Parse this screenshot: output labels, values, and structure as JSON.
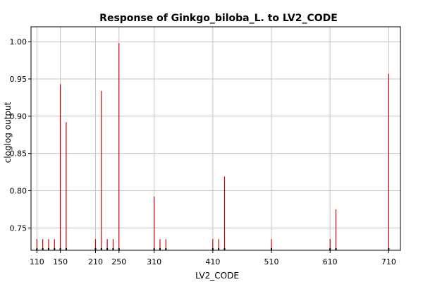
{
  "chart_data": {
    "type": "bar",
    "title": "Response of Ginkgo_biloba_L. to LV2_CODE",
    "xlabel": "LV2_CODE",
    "ylabel": "cloglog output",
    "xlim": [
      100,
      730
    ],
    "ylim": [
      0.72,
      1.02
    ],
    "x_ticks": [
      110,
      150,
      210,
      250,
      310,
      410,
      510,
      610,
      710
    ],
    "y_ticks": [
      0.75,
      0.8,
      0.85,
      0.9,
      0.95,
      1.0
    ],
    "y_tick_labels": [
      "0.75",
      "0.80",
      "0.85",
      "0.90",
      "0.95",
      "1.00"
    ],
    "grid": true,
    "color": "#cc0000",
    "points": [
      {
        "x": 110,
        "y": 0.735
      },
      {
        "x": 120,
        "y": 0.735
      },
      {
        "x": 130,
        "y": 0.735
      },
      {
        "x": 140,
        "y": 0.735
      },
      {
        "x": 150,
        "y": 0.943
      },
      {
        "x": 160,
        "y": 0.892
      },
      {
        "x": 210,
        "y": 0.735
      },
      {
        "x": 220,
        "y": 0.934
      },
      {
        "x": 230,
        "y": 0.735
      },
      {
        "x": 240,
        "y": 0.735
      },
      {
        "x": 250,
        "y": 0.998
      },
      {
        "x": 310,
        "y": 0.792
      },
      {
        "x": 320,
        "y": 0.735
      },
      {
        "x": 330,
        "y": 0.735
      },
      {
        "x": 410,
        "y": 0.735
      },
      {
        "x": 420,
        "y": 0.735
      },
      {
        "x": 430,
        "y": 0.819
      },
      {
        "x": 510,
        "y": 0.735
      },
      {
        "x": 610,
        "y": 0.735
      },
      {
        "x": 620,
        "y": 0.775
      },
      {
        "x": 710,
        "y": 0.957
      }
    ]
  }
}
